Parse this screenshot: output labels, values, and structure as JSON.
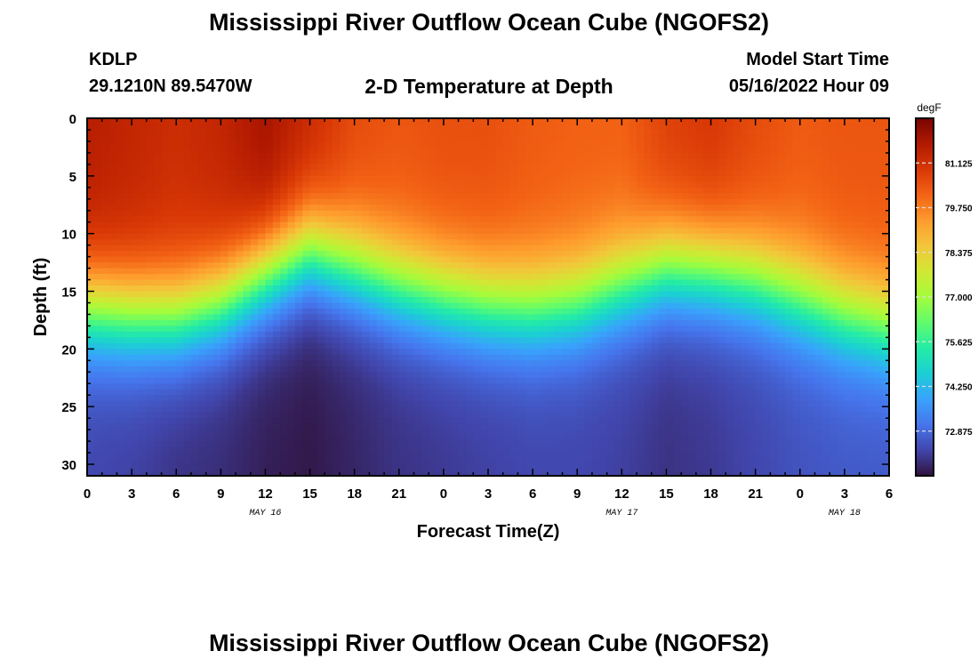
{
  "header": {
    "title": "Mississippi River Outflow Ocean Cube (NGOFS2)",
    "station": "KDLP",
    "coords": "29.1210N  89.5470W",
    "subtitle": "2-D Temperature at Depth",
    "start_label": "Model Start Time",
    "start_value": "05/16/2022 Hour 09"
  },
  "footer": {
    "title": "Mississippi River Outflow Ocean Cube (NGOFS2)"
  },
  "chart_data": {
    "type": "heatmap",
    "title": "2-D Temperature at Depth",
    "xlabel": "Forecast Time(Z)",
    "ylabel": "Depth (ft)",
    "xlim": [
      0,
      54
    ],
    "ylim": [
      31,
      0
    ],
    "x_ticks": [
      0,
      3,
      6,
      9,
      12,
      15,
      18,
      21,
      24,
      27,
      30,
      33,
      36,
      39,
      42,
      45,
      48,
      51,
      54
    ],
    "x_tick_labels": [
      "0",
      "3",
      "6",
      "9",
      "12",
      "15",
      "18",
      "21",
      "0",
      "3",
      "6",
      "9",
      "12",
      "15",
      "18",
      "21",
      "0",
      "3",
      "6"
    ],
    "date_labels": [
      {
        "hour": 12,
        "label": "MAY 16"
      },
      {
        "hour": 36,
        "label": "MAY 17"
      },
      {
        "hour": 51,
        "label": "MAY 18"
      }
    ],
    "y_ticks": [
      0,
      5,
      10,
      15,
      20,
      25,
      30
    ],
    "colorbar": {
      "label": "degF",
      "min": 71.5,
      "max": 82.5,
      "ticks": [
        81.125,
        79.75,
        78.375,
        77.0,
        75.625,
        74.25,
        72.875
      ],
      "tick_labels": [
        "81.125",
        "79.750",
        "78.375",
        "77.000",
        "75.625",
        "74.250",
        "72.875"
      ]
    },
    "colors": [
      "#30123b",
      "#4145ab",
      "#4675ed",
      "#39a2fc",
      "#1bcfd4",
      "#24eca6",
      "#61fc6c",
      "#a4fc3b",
      "#d1e834",
      "#f3c63a",
      "#fe9b2d",
      "#f36315",
      "#d93806",
      "#b11901",
      "#7a0403"
    ],
    "surface_temp": [
      81.6,
      81.4,
      81.2,
      81.4,
      81.9,
      81.3,
      80.6,
      80.4,
      80.5,
      80.5,
      80.3,
      80.2,
      80.2,
      80.8,
      81.0,
      80.6,
      80.3,
      80.4,
      80.4
    ],
    "bottom_temp": [
      72.3,
      72.2,
      72.0,
      71.9,
      71.7,
      71.6,
      71.8,
      72.0,
      72.1,
      72.2,
      72.3,
      72.3,
      72.2,
      72.0,
      72.1,
      72.3,
      72.5,
      72.6,
      72.6
    ],
    "thermocline_depth_ft": [
      16.5,
      17.0,
      17.2,
      16.0,
      13.5,
      11.5,
      13.0,
      14.5,
      15.5,
      16.2,
      16.5,
      16.0,
      14.5,
      13.0,
      13.2,
      14.0,
      15.5,
      17.0,
      18.0
    ]
  }
}
